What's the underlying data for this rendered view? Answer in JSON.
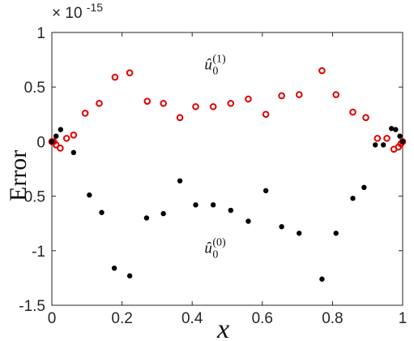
{
  "chart_data": {
    "type": "scatter",
    "xlabel": "x",
    "ylabel": "Error",
    "y_exponent_label": "× 10",
    "y_exponent_power": "-15",
    "xlim": [
      0,
      1
    ],
    "ylim": [
      -1.5,
      1
    ],
    "xticks": [
      0,
      0.2,
      0.4,
      0.6,
      0.8,
      1
    ],
    "xtick_labels": [
      "0",
      "0.2",
      "0.4",
      "0.6",
      "0.8",
      "1"
    ],
    "yticks": [
      1,
      0.5,
      0,
      -0.5,
      -1,
      -1.5
    ],
    "ytick_labels": [
      "1",
      "0.5",
      "0",
      "-0.5",
      "-1",
      "-1.5"
    ],
    "grid": false,
    "series": [
      {
        "key": "u1",
        "marker": "open-circle",
        "color": "#e00000",
        "x": [
          0,
          0.005,
          0.012,
          0.024,
          0.042,
          0.062,
          0.095,
          0.135,
          0.18,
          0.222,
          0.272,
          0.318,
          0.365,
          0.41,
          0.46,
          0.51,
          0.56,
          0.61,
          0.655,
          0.705,
          0.77,
          0.81,
          0.858,
          0.895,
          0.928,
          0.955,
          0.975,
          0.988,
          0.995,
          1
        ],
        "y": [
          0.0,
          0.0,
          -0.03,
          -0.06,
          0.03,
          0.06,
          0.26,
          0.35,
          0.59,
          0.63,
          0.37,
          0.35,
          0.22,
          0.32,
          0.32,
          0.35,
          0.39,
          0.25,
          0.42,
          0.43,
          0.65,
          0.43,
          0.27,
          0.22,
          0.03,
          0.03,
          -0.07,
          -0.05,
          -0.02,
          0.0
        ]
      },
      {
        "key": "u0",
        "marker": "filled-dot",
        "color": "#000000",
        "x": [
          0,
          0.012,
          0.025,
          0.062,
          0.107,
          0.142,
          0.178,
          0.222,
          0.27,
          0.318,
          0.365,
          0.41,
          0.46,
          0.51,
          0.56,
          0.61,
          0.655,
          0.705,
          0.77,
          0.81,
          0.858,
          0.89,
          0.922,
          0.945,
          0.968,
          0.98,
          0.992,
          1
        ],
        "y": [
          0.0,
          0.05,
          0.11,
          -0.1,
          -0.49,
          -0.65,
          -1.16,
          -1.23,
          -0.7,
          -0.66,
          -0.36,
          -0.58,
          -0.58,
          -0.63,
          -0.73,
          -0.45,
          -0.78,
          -0.84,
          -1.26,
          -0.84,
          -0.52,
          -0.42,
          -0.03,
          -0.03,
          0.12,
          0.11,
          0.05,
          0.0
        ]
      }
    ],
    "annotations": [
      {
        "key": "u1",
        "base": "û",
        "sub": "0",
        "sup": "(1)",
        "at_x": 0.435,
        "at_y": 0.66
      },
      {
        "key": "u0",
        "base": "û",
        "sub": "0",
        "sup": "(0)",
        "at_x": 0.435,
        "at_y": -1.02
      }
    ]
  }
}
